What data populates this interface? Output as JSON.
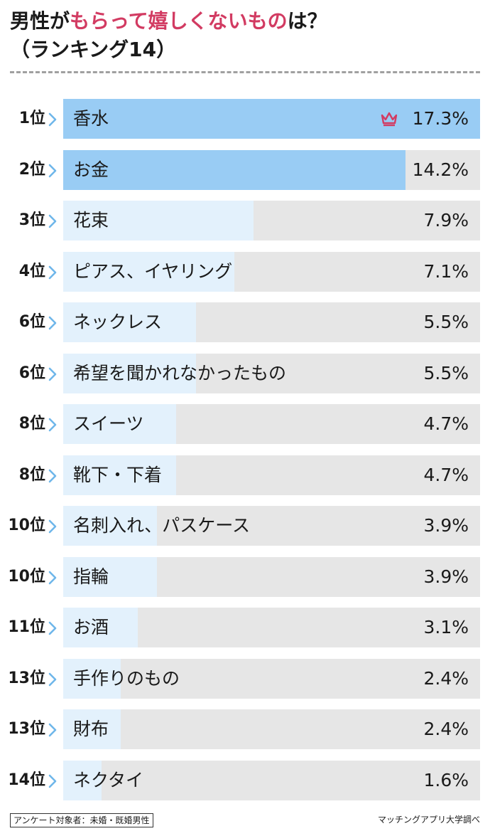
{
  "title_prefix": "男性が",
  "title_highlight": "もらって嬉しくないもの",
  "title_suffix": "は？",
  "subtitle": "（ランキング14）",
  "colors": {
    "highlight_text": "#d23b62",
    "bar_top": "#99ccf4",
    "bar_rest": "#e3f1fc",
    "track": "#e6e6e6",
    "chevron": "#6fb6ea",
    "crown": "#d23b62"
  },
  "chart_data": {
    "type": "bar",
    "orientation": "horizontal",
    "unit": "%",
    "xlim": [
      0,
      17.3
    ],
    "items": [
      {
        "rank": "1位",
        "label": "香水",
        "value": 17.3,
        "value_label": "17.3%"
      },
      {
        "rank": "2位",
        "label": "お金",
        "value": 14.2,
        "value_label": "14.2%"
      },
      {
        "rank": "3位",
        "label": "花束",
        "value": 7.9,
        "value_label": "7.9%"
      },
      {
        "rank": "4位",
        "label": "ピアス、イヤリング",
        "value": 7.1,
        "value_label": "7.1%"
      },
      {
        "rank": "6位",
        "label": "ネックレス",
        "value": 5.5,
        "value_label": "5.5%"
      },
      {
        "rank": "6位",
        "label": "希望を聞かれなかったもの",
        "value": 5.5,
        "value_label": "5.5%"
      },
      {
        "rank": "8位",
        "label": "スイーツ",
        "value": 4.7,
        "value_label": "4.7%"
      },
      {
        "rank": "8位",
        "label": "靴下・下着",
        "value": 4.7,
        "value_label": "4.7%"
      },
      {
        "rank": "10位",
        "label": "名刺入れ、パスケース",
        "value": 3.9,
        "value_label": "3.9%"
      },
      {
        "rank": "10位",
        "label": "指輪",
        "value": 3.9,
        "value_label": "3.9%"
      },
      {
        "rank": "11位",
        "label": "お酒",
        "value": 3.1,
        "value_label": "3.1%"
      },
      {
        "rank": "13位",
        "label": "手作りのもの",
        "value": 2.4,
        "value_label": "2.4%"
      },
      {
        "rank": "13位",
        "label": "財布",
        "value": 2.4,
        "value_label": "2.4%"
      },
      {
        "rank": "14位",
        "label": "ネクタイ",
        "value": 1.6,
        "value_label": "1.6%"
      }
    ]
  },
  "footer": {
    "note": "アンケート対象者：未婚・既婚男性",
    "source": "マッチングアプリ大学調べ"
  },
  "icons": {
    "rank_marker": "chevron-right-icon",
    "top_marker": "crown-icon"
  }
}
